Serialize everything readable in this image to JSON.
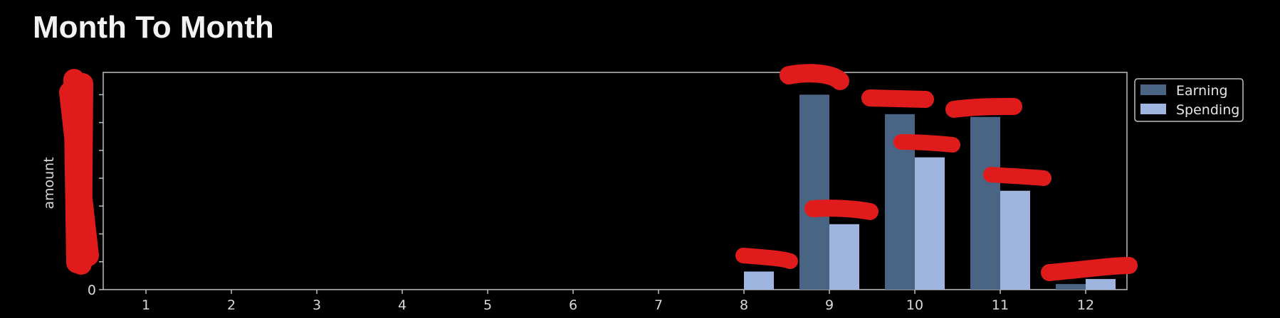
{
  "page": {
    "title": "Month To Month"
  },
  "chart_data": {
    "type": "bar",
    "title": "",
    "xlabel": "",
    "ylabel": "amount",
    "categories": [
      "1",
      "2",
      "3",
      "4",
      "5",
      "6",
      "7",
      "8",
      "9",
      "10",
      "11",
      "12"
    ],
    "ylim": [
      0,
      7800
    ],
    "y_ticks": [
      0,
      1000,
      2000,
      3000,
      4000,
      5000,
      6000,
      7000
    ],
    "y_tick_labels": [
      "0",
      "",
      "",
      "",
      "",
      "",
      "",
      ""
    ],
    "legend_position": "upper-right-outside",
    "grid": false,
    "colors": {
      "background": "#000000",
      "axes": "#bfbfbf",
      "redaction": "#e01b1b"
    },
    "series": [
      {
        "name": "Earning",
        "color": "#4a6583",
        "values": [
          0,
          0,
          0,
          0,
          0,
          0,
          0,
          0,
          7000,
          6300,
          6200,
          200
        ]
      },
      {
        "name": "Spending",
        "color": "#9eb5df",
        "values": [
          0,
          0,
          0,
          0,
          0,
          0,
          0,
          650,
          2350,
          4750,
          3550,
          380
        ]
      }
    ],
    "data_label_redacted": true
  }
}
